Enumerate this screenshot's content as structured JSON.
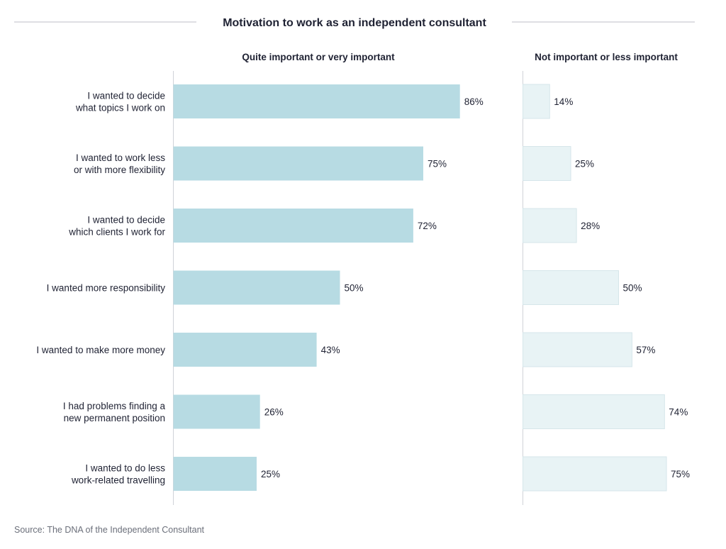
{
  "chart_data": {
    "type": "bar",
    "orientation": "horizontal",
    "title": "Motivation to work as an independent consultant",
    "categories": [
      [
        "I wanted to decide",
        "what topics I work on"
      ],
      [
        "I wanted to work less",
        "or with more flexibility"
      ],
      [
        "I wanted to decide",
        "which clients I work for"
      ],
      [
        "I wanted more responsibility"
      ],
      [
        "I wanted to make more money"
      ],
      [
        "I had problems finding a",
        "new permanent position"
      ],
      [
        "I wanted to do less",
        "work-related travelling"
      ]
    ],
    "series": [
      {
        "name": "Quite important or very important",
        "values": [
          86,
          75,
          72,
          50,
          43,
          26,
          25
        ],
        "labels": [
          "86%",
          "75%",
          "72%",
          "50%",
          "43%",
          "26%",
          "25%"
        ],
        "color": "#b7dbe3"
      },
      {
        "name": "Not important or less important",
        "values": [
          14,
          25,
          28,
          50,
          57,
          74,
          75
        ],
        "labels": [
          "14%",
          "25%",
          "28%",
          "50%",
          "57%",
          "74%",
          "75%"
        ],
        "color": "#e8f3f5"
      }
    ],
    "unit": "%",
    "xlim": [
      0,
      100
    ],
    "grid": false,
    "legend": "panel titles above each panel"
  },
  "source": "Source: The DNA of the Independent Consultant"
}
